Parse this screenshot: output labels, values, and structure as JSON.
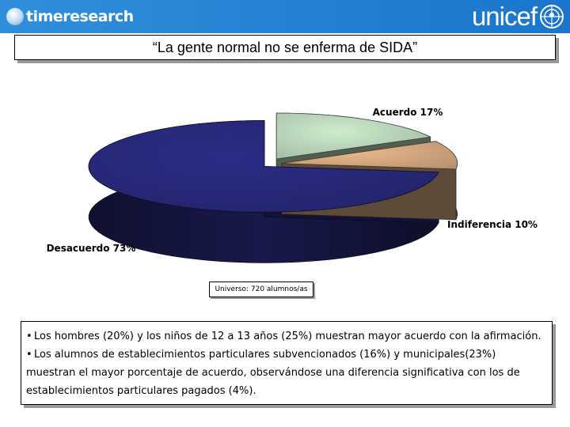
{
  "header": {
    "left_logo_text": "timeresearch",
    "right_logo_text": "unicef"
  },
  "title": "“La gente normal no se enferma de SIDA”",
  "chart_data": {
    "type": "pie",
    "style": "3d-exploded",
    "slices": [
      {
        "label": "Acuerdo 17%",
        "category": "Acuerdo",
        "value": 17,
        "color": "#cdeccd"
      },
      {
        "label": "Indiferencia 10%",
        "category": "Indiferencia",
        "value": 10,
        "color": "#e9b98d"
      },
      {
        "label": "Desacuerdo 73%",
        "category": "Desacuerdo",
        "value": 73,
        "color": "#2b2d86"
      }
    ]
  },
  "universe": "Universo: 720 alumnos/as",
  "notes": [
    "Los hombres (20%) y los niños de 12 a 13 años (25%) muestran mayor acuerdo con la afirmación.",
    "Los alumnos de establecimientos particulares subvencionados (16%) y municipales(23%) muestran el mayor porcentaje de acuerdo, observándose una diferencia significativa con los de establecimientos particulares pagados (4%)."
  ]
}
